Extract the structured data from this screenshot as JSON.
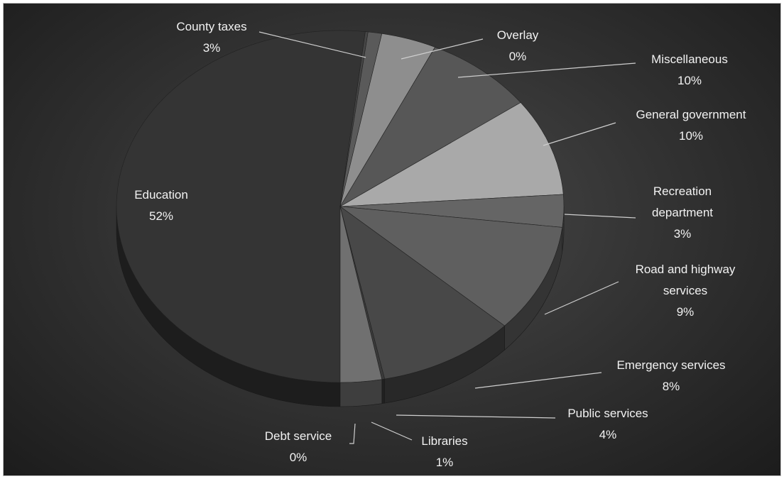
{
  "chart_data": {
    "type": "pie",
    "style": "3d",
    "colors": {
      "background": "#2e2e2e",
      "label": "#f2f2f2",
      "leader": "#cfcfcf"
    },
    "slices": [
      {
        "name": "Education",
        "pct_label": "52%",
        "value": 52,
        "color": "#343434"
      },
      {
        "name": "Debt service",
        "pct_label": "0%",
        "value": 0.2,
        "color": "#454545"
      },
      {
        "name": "Libraries",
        "pct_label": "1%",
        "value": 1,
        "color": "#5a5a5a"
      },
      {
        "name": "Public services",
        "pct_label": "4%",
        "value": 4,
        "color": "#8e8e8e"
      },
      {
        "name": "Emergency services",
        "pct_label": "8%",
        "value": 8,
        "color": "#575757"
      },
      {
        "name": "Road and highway services",
        "pct_label": "9%",
        "value": 9,
        "color": "#a9a9a9"
      },
      {
        "name": "Recreation department",
        "pct_label": "3%",
        "value": 3,
        "color": "#656565"
      },
      {
        "name": "General government",
        "pct_label": "10%",
        "value": 10,
        "color": "#5f5f5f"
      },
      {
        "name": "Miscellaneous",
        "pct_label": "10%",
        "value": 10,
        "color": "#484848"
      },
      {
        "name": "Overlay",
        "pct_label": "0%",
        "value": 0.2,
        "color": "#3a3a3a"
      },
      {
        "name": "County taxes",
        "pct_label": "3%",
        "value": 3,
        "color": "#707070"
      }
    ]
  }
}
